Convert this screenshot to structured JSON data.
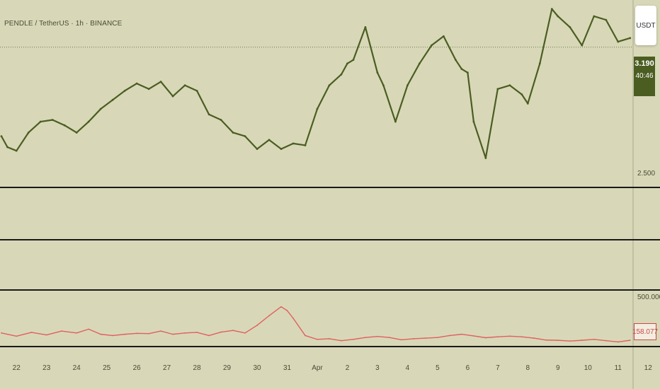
{
  "header": {
    "symbol_title": "PENDLE / TetherUS · 1h · BINANCE"
  },
  "toolbar": {
    "currency_label": "USDT"
  },
  "price_badge": {
    "price": "3.190",
    "countdown": "40:46"
  },
  "indicator_badge": {
    "value": "158.077"
  },
  "colors": {
    "background": "#d8d8b8",
    "price_line": "#4b5d21",
    "indicator_line": "#e06060",
    "divider": "#1a1a1a"
  },
  "chart_data": [
    {
      "type": "line",
      "price_axis_labels": [
        "2.500"
      ],
      "ylim": [
        2.43,
        3.43
      ],
      "current_price": 3.19,
      "x_ticks": [
        "22",
        "23",
        "24",
        "25",
        "26",
        "27",
        "28",
        "29",
        "30",
        "31",
        "Apr",
        "2",
        "3",
        "4",
        "5",
        "6",
        "7",
        "8",
        "9",
        "10",
        "11",
        "12"
      ],
      "x": [
        21.5,
        21.7,
        22.0,
        22.4,
        22.8,
        23.2,
        23.6,
        24.0,
        24.4,
        24.8,
        25.2,
        25.6,
        26.0,
        26.4,
        26.8,
        27.2,
        27.6,
        28.0,
        28.4,
        28.8,
        29.2,
        29.6,
        30.0,
        30.4,
        30.8,
        31.2,
        31.6,
        32.0,
        32.4,
        32.8,
        33.0,
        33.2,
        33.6,
        34.0,
        34.2,
        34.6,
        35.0,
        35.4,
        35.8,
        36.2,
        36.6,
        36.8,
        37.0,
        37.2,
        37.6,
        38.0,
        38.4,
        38.8,
        39.0,
        39.4,
        39.8,
        40.0,
        40.4,
        40.8,
        41.2,
        41.6,
        42.0,
        42.4
      ],
      "y": [
        2.7,
        2.64,
        2.62,
        2.72,
        2.78,
        2.79,
        2.76,
        2.72,
        2.78,
        2.85,
        2.9,
        2.95,
        2.99,
        2.96,
        3.0,
        2.92,
        2.98,
        2.95,
        2.82,
        2.79,
        2.72,
        2.7,
        2.63,
        2.68,
        2.63,
        2.66,
        2.65,
        2.85,
        2.98,
        3.04,
        3.1,
        3.12,
        3.3,
        3.05,
        2.98,
        2.78,
        2.98,
        3.1,
        3.2,
        3.25,
        3.12,
        3.07,
        3.05,
        2.78,
        2.58,
        2.96,
        2.98,
        2.93,
        2.88,
        3.1,
        3.4,
        3.36,
        3.3,
        3.2,
        3.36,
        3.34,
        3.22,
        3.24
      ]
    },
    {
      "type": "line",
      "price_axis_labels": [
        "500.000"
      ],
      "ylim": [
        120,
        540
      ],
      "current_value": 158.077,
      "x": [
        21.5,
        22.0,
        22.5,
        23.0,
        23.5,
        24.0,
        24.4,
        24.8,
        25.2,
        25.6,
        26.0,
        26.4,
        26.8,
        27.2,
        27.6,
        28.0,
        28.4,
        28.8,
        29.2,
        29.6,
        30.0,
        30.4,
        30.8,
        31.0,
        31.2,
        31.6,
        32.0,
        32.4,
        32.8,
        33.2,
        33.6,
        34.0,
        34.4,
        34.8,
        35.2,
        35.6,
        36.0,
        36.4,
        36.8,
        37.2,
        37.6,
        38.0,
        38.4,
        38.8,
        39.2,
        39.6,
        40.0,
        40.4,
        40.8,
        41.2,
        41.6,
        42.0,
        42.4
      ],
      "y": [
        215,
        190,
        220,
        200,
        230,
        215,
        245,
        205,
        195,
        205,
        212,
        210,
        230,
        205,
        215,
        220,
        195,
        222,
        235,
        215,
        275,
        350,
        420,
        390,
        330,
        195,
        165,
        170,
        155,
        165,
        180,
        188,
        180,
        162,
        170,
        175,
        180,
        195,
        205,
        192,
        178,
        185,
        190,
        185,
        175,
        160,
        158,
        152,
        158,
        165,
        155,
        145,
        158
      ]
    }
  ]
}
